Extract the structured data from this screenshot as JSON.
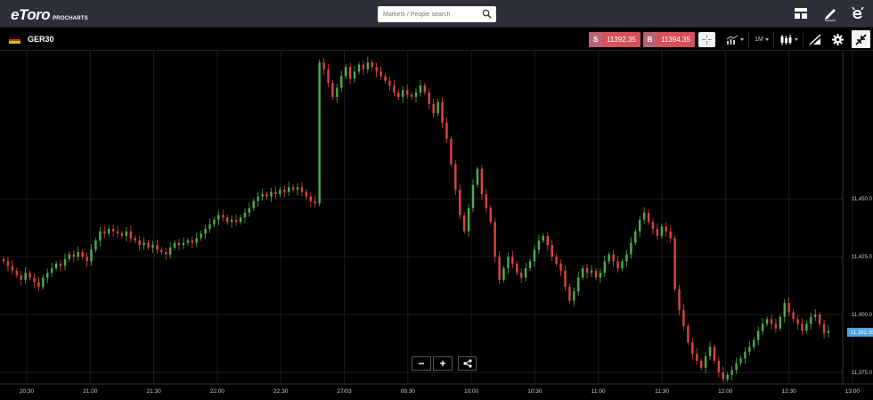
{
  "header": {
    "logo_text": "eToro",
    "logo_sub": "PROCHARTS",
    "search": {
      "placeholder": "Markets / People search"
    },
    "icons": [
      "layout-icon",
      "pencil-icon",
      "etoro-profile-icon"
    ]
  },
  "toolbar": {
    "symbol": "GER30",
    "sell_label": "S",
    "sell_price": "11392.35",
    "buy_label": "B",
    "buy_price": "11394.35",
    "timeframe": "1M"
  },
  "colors": {
    "up": "#4caf50",
    "down": "#e0443c",
    "grid": "#1c1c1c",
    "current_price_tag": "#4da3e0",
    "sell_bg": "#d6505a"
  },
  "chart_data": {
    "type": "candlestick",
    "symbol": "GER30",
    "ylim": [
      11370,
      11514
    ],
    "y_ticks": [
      "11,450.0",
      "11,425.0",
      "11,400.0",
      "11,375.0"
    ],
    "y_tick_values": [
      11450,
      11425,
      11400,
      11375
    ],
    "x_ticks": [
      "20:30",
      "21:00",
      "21:30",
      "22:00",
      "22:30",
      "27/03",
      "09:30",
      "10:00",
      "10:30",
      "11:00",
      "11:30",
      "12:00",
      "12:30",
      "13:00"
    ],
    "current_price_label": "11,392.35",
    "current_price": 11392.35,
    "candles_close": [
      11423,
      11421,
      11419,
      11417,
      11415,
      11418,
      11416,
      11414,
      11412,
      11416,
      11418,
      11420,
      11422,
      11421,
      11424,
      11426,
      11425,
      11427,
      11425,
      11423,
      11428,
      11432,
      11436,
      11435,
      11437,
      11436,
      11435,
      11434,
      11436,
      11433,
      11432,
      11430,
      11431,
      11429,
      11430,
      11428,
      11427,
      11426,
      11429,
      11431,
      11430,
      11431,
      11432,
      11431,
      11433,
      11435,
      11437,
      11439,
      11441,
      11443,
      11442,
      11440,
      11441,
      11440,
      11442,
      11444,
      11446,
      11449,
      11451,
      11452,
      11451,
      11453,
      11452,
      11454,
      11453,
      11455,
      11454,
      11455,
      11453,
      11451,
      11449,
      11448,
      11509,
      11506,
      11500,
      11494,
      11498,
      11503,
      11507,
      11502,
      11505,
      11508,
      11506,
      11509,
      11507,
      11505,
      11503,
      11501,
      11499,
      11496,
      11494,
      11497,
      11495,
      11494,
      11496,
      11499,
      11496,
      11491,
      11487,
      11492,
      11483,
      11476,
      11465,
      11454,
      11443,
      11436,
      11446,
      11456,
      11463,
      11452,
      11446,
      11440,
      11425,
      11415,
      11420,
      11425,
      11422,
      11418,
      11416,
      11420,
      11423,
      11428,
      11432,
      11434,
      11430,
      11425,
      11422,
      11419,
      11412,
      11406,
      11410,
      11416,
      11420,
      11418,
      11419,
      11416,
      11418,
      11423,
      11426,
      11423,
      11420,
      11423,
      11426,
      11431,
      11436,
      11441,
      11444,
      11440,
      11437,
      11434,
      11438,
      11436,
      11433,
      11411,
      11402,
      11395,
      11388,
      11383,
      11380,
      11377,
      11382,
      11386,
      11380,
      11375,
      11372,
      11374,
      11376,
      11379,
      11381,
      11384,
      11386,
      11389,
      11393,
      11396,
      11398,
      11396,
      11394,
      11399,
      11405,
      11401,
      11398,
      11396,
      11393,
      11396,
      11399,
      11400,
      11396,
      11392,
      11393
    ]
  },
  "controls": {
    "zoom_out_label": "−",
    "zoom_in_label": "+"
  }
}
